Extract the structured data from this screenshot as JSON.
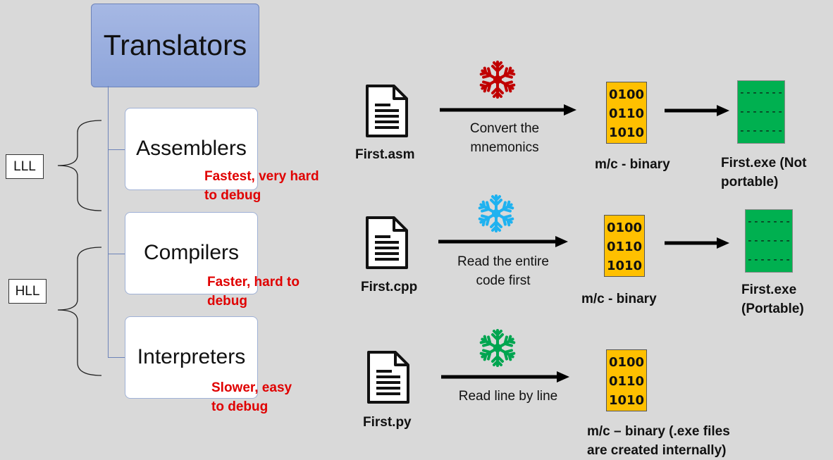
{
  "title": "Translators",
  "translators": [
    {
      "name": "Assemblers",
      "note_line1": "Fastest, very hard",
      "note_line2": "to debug"
    },
    {
      "name": "Compilers",
      "note_line1": "Faster, hard to",
      "note_line2": "debug"
    },
    {
      "name": "Interpreters",
      "note_line1": "Slower, easy",
      "note_line2": "to debug"
    }
  ],
  "levels": {
    "low": "LLL",
    "high": "HLL"
  },
  "flows": [
    {
      "source_file": "First.asm",
      "process_line1": "Convert the",
      "process_line2": "mnemonics",
      "binary": [
        "0100",
        "0110",
        "1010"
      ],
      "binary_label": "m/c - binary",
      "exe_lines": [
        "-------",
        "-------",
        "-------"
      ],
      "exe_label_line1": "First.exe (Not",
      "exe_label_line2": "portable)",
      "snowflake_color": "#c00000"
    },
    {
      "source_file": "First.cpp",
      "process_line1": "Read the entire",
      "process_line2": "code first",
      "binary": [
        "0100",
        "0110",
        "1010"
      ],
      "binary_label": "m/c - binary",
      "exe_lines": [
        "-------",
        "-------",
        "-------"
      ],
      "exe_label_line1": "First.exe",
      "exe_label_line2": "(Portable)",
      "snowflake_color": "#1fb2f0"
    },
    {
      "source_file": "First.py",
      "process_line1": "Read line by line",
      "binary": [
        "0100",
        "0110",
        "1010"
      ],
      "binary_label_line1": "m/c – binary (.exe files",
      "binary_label_line2": "are created internally)",
      "snowflake_color": "#00a550"
    }
  ]
}
